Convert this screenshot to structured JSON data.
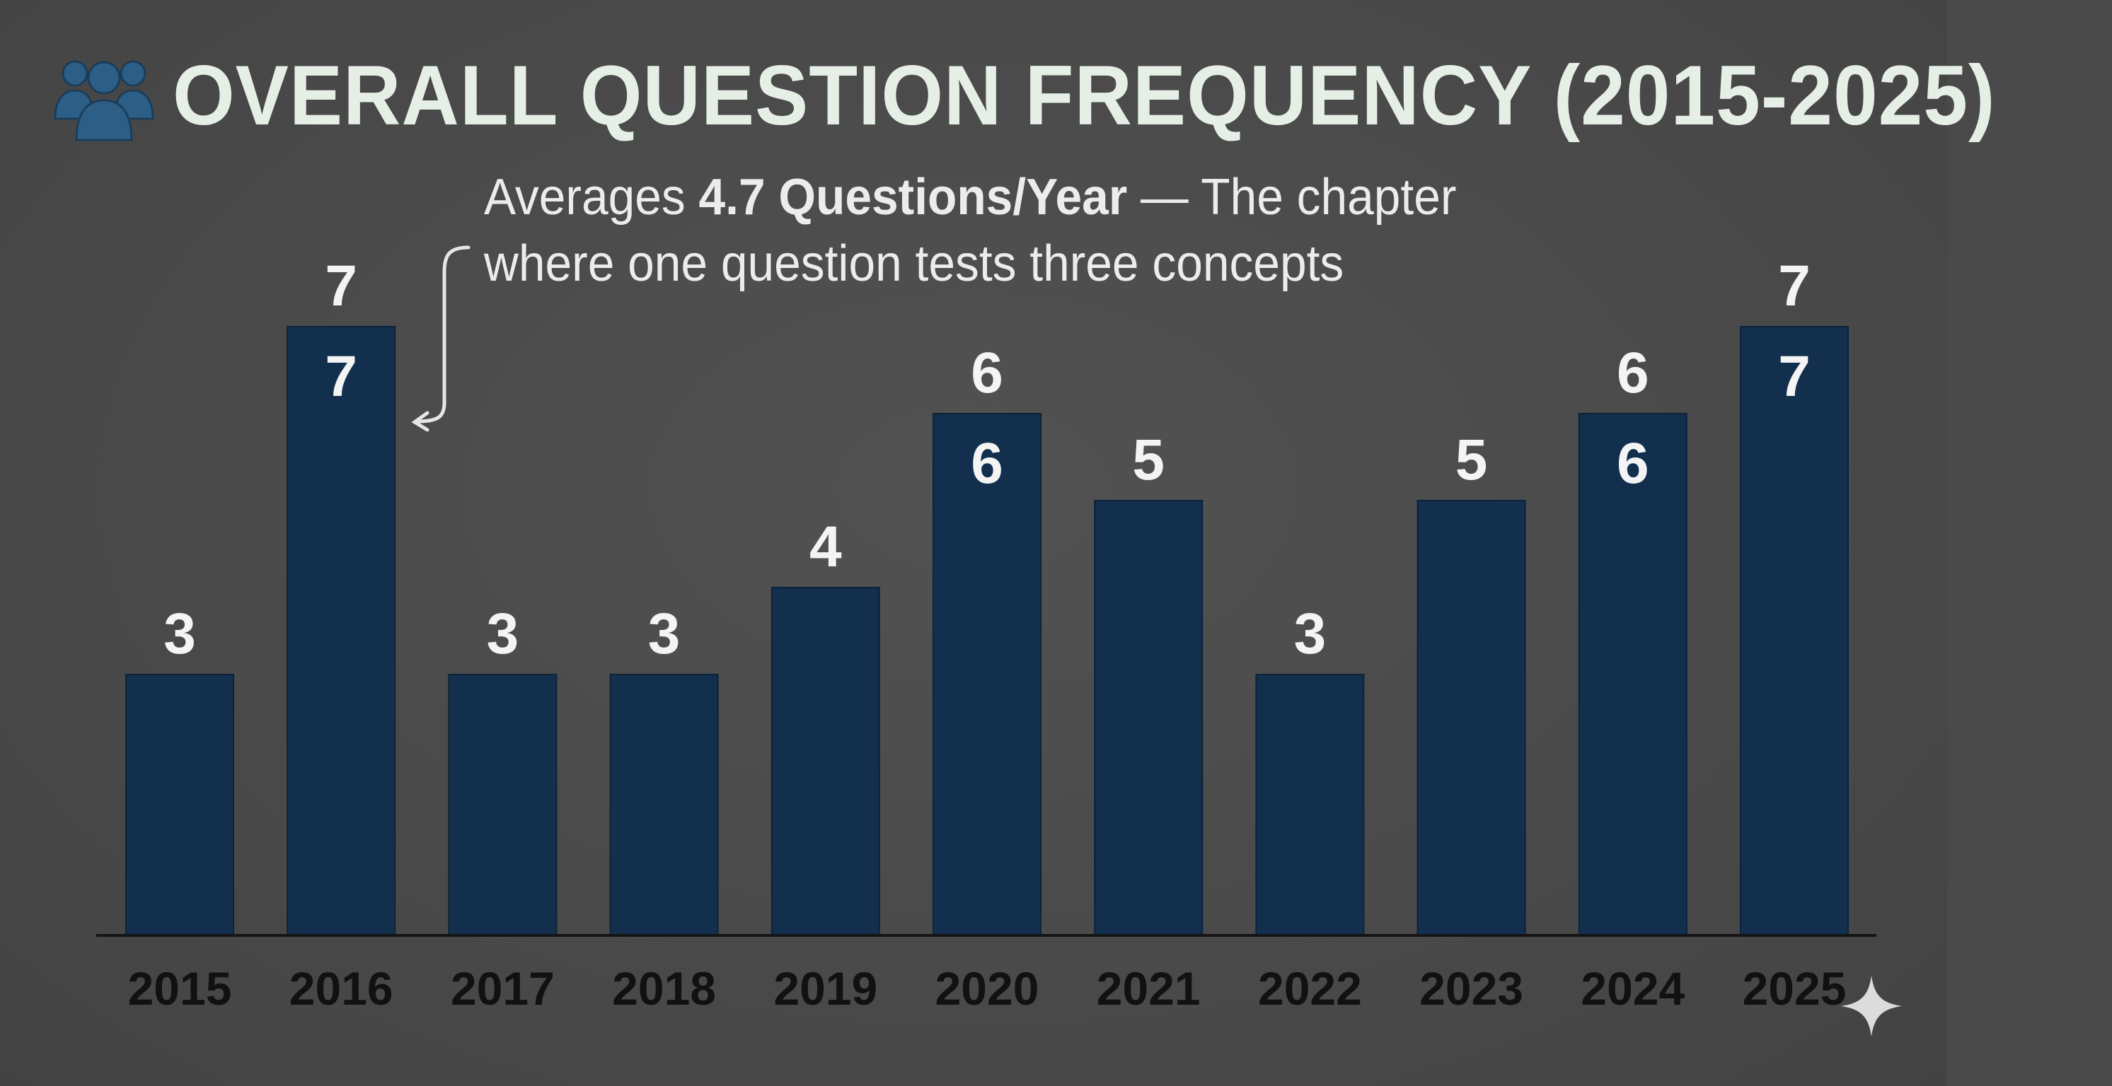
{
  "title": {
    "text": "OVERALL QUESTION FREQUENCY (2015-2025)",
    "icon": "people-group-icon",
    "icon_color": "#2c5e86",
    "color": "#e6efe6"
  },
  "subtitle": {
    "pre": "Averages ",
    "bold": "4.7 Questions/Year",
    "post": " — The chapter",
    "line2": "where one question tests three concepts",
    "pointer_icon": "curved-arrow-icon"
  },
  "colors": {
    "background": "#4a4a4a",
    "bar": "#12304d",
    "label": "#f4f4f4",
    "tick": "#111111"
  },
  "chart_data": {
    "type": "bar",
    "title": "OVERALL QUESTION FREQUENCY (2015-2025)",
    "xlabel": "",
    "ylabel": "",
    "categories": [
      "2015",
      "2016",
      "2017",
      "2018",
      "2019",
      "2020",
      "2021",
      "2022",
      "2023",
      "2024",
      "2025"
    ],
    "values": [
      3,
      7,
      3,
      3,
      4,
      6,
      5,
      3,
      5,
      6,
      7
    ],
    "above_labels": [
      "3",
      "7",
      "3",
      "3",
      "4",
      "6",
      "5",
      "3",
      "5",
      "6",
      "7"
    ],
    "inside_labels": [
      "",
      "7",
      "",
      "",
      "",
      "6",
      "",
      "",
      "",
      "6",
      "7"
    ],
    "ylim": [
      0,
      7
    ],
    "grid": false,
    "legend": "none"
  },
  "watermark_icon": "sparkle-icon"
}
